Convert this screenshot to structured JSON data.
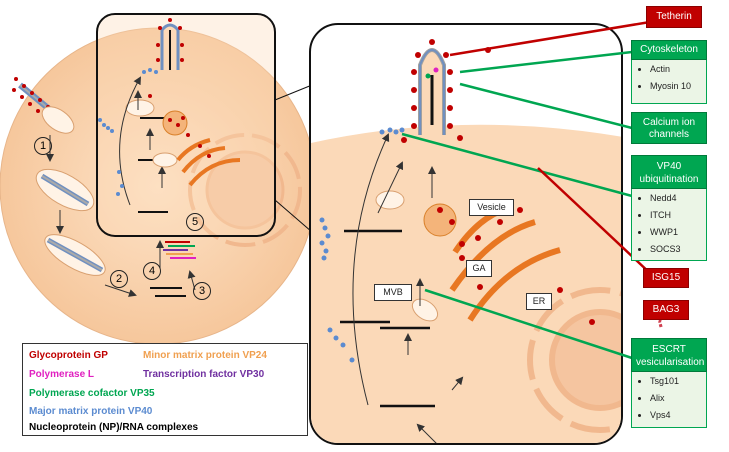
{
  "labels": {
    "vesicle": "Vesicle",
    "ga": "GA",
    "er": "ER",
    "mvb": "MVB",
    "step1": "1",
    "step2": "2",
    "step3": "3",
    "step4": "4",
    "step5": "5"
  },
  "factors": {
    "tetherin": "Tetherin",
    "cytoskeleton": {
      "title": "Cytoskeleton",
      "items": [
        "Actin",
        "Myosin 10"
      ]
    },
    "calcium": "Calcium ion channels",
    "vp40ub": {
      "title": "VP40 ubiquitination",
      "items": [
        "Nedd4",
        "ITCH",
        "WWP1",
        "SOCS3"
      ]
    },
    "isg15": "ISG15",
    "bag3": "BAG3",
    "escrt": {
      "title": "ESCRT vesicularisation",
      "items": [
        "Tsg101",
        "Alix",
        "Vps4"
      ]
    }
  },
  "legend": {
    "gp": "Glycoprotein GP",
    "vp24": "Minor matrix protein VP24",
    "pol": "Polymerase L",
    "vp30": "Transcription factor VP30",
    "vp35": "Polymerase cofactor VP35",
    "vp40": "Major matrix protein VP40",
    "np": "Nucleoprotein (NP)/RNA complexes"
  },
  "colors": {
    "gp": "#c00000",
    "vp24": "#f0a050",
    "pol": "#e020c0",
    "vp30": "#7030a0",
    "vp35": "#00a651",
    "vp40": "#5b8bd0",
    "np": "#000000",
    "cell": "#fbd9b8",
    "organelle": "#e87722"
  },
  "icons": {
    "question": "question-mark-icon"
  }
}
